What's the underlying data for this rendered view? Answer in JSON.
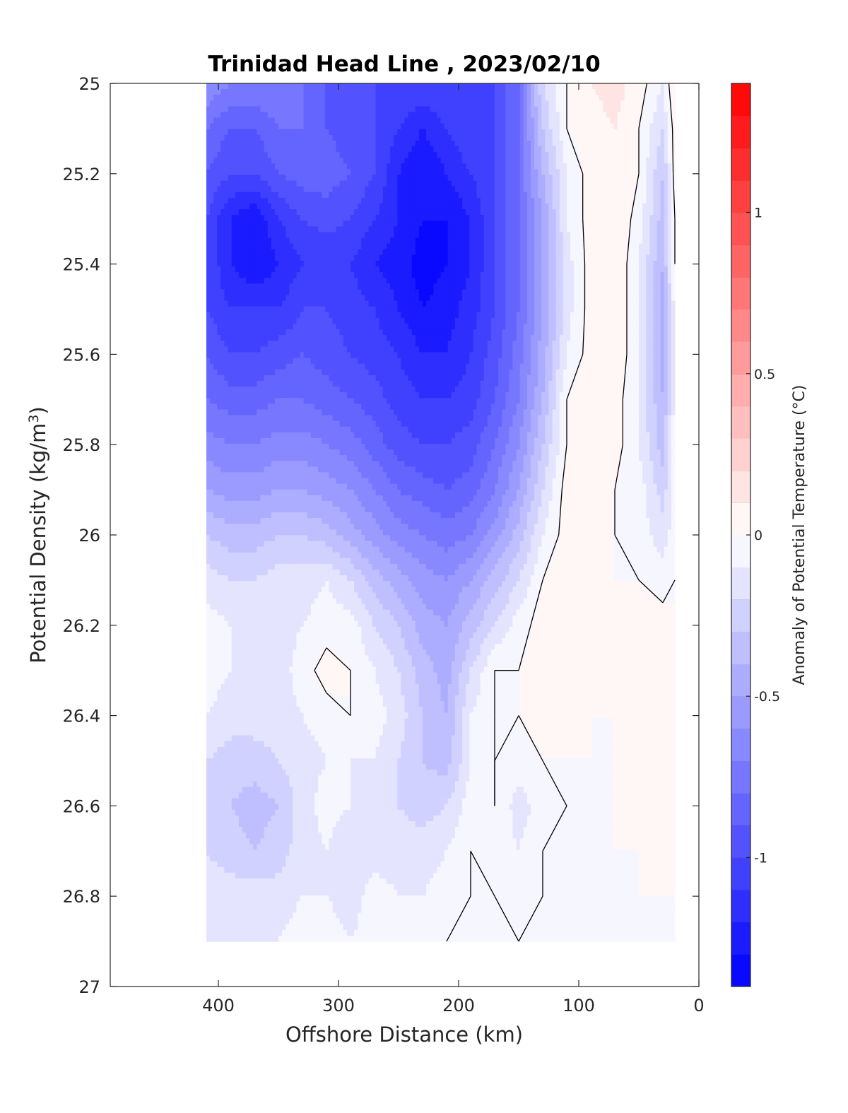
{
  "chart_data": {
    "type": "contour",
    "title": "Trinidad Head Line , 2023/02/10",
    "xlabel": "Offshore Distance (km)",
    "ylabel": "Potential Density (kg/m³)",
    "ylabel_base": "Potential Density (kg/m",
    "ylabel_sup": "3",
    "ylabel_tail": ")",
    "xlim": [
      490,
      0
    ],
    "ylim": [
      25,
      27
    ],
    "xticks": [
      400,
      300,
      200,
      100,
      0
    ],
    "yticks": [
      25,
      25.2,
      25.4,
      25.6,
      25.8,
      26,
      26.2,
      26.4,
      26.6,
      26.8,
      27
    ],
    "data_extent": {
      "x": [
        410,
        20
      ],
      "y": [
        25.0,
        26.9
      ]
    },
    "zero_contour_drawn": true,
    "colorbar": {
      "label": "Anomaly of Potential Temperature (°C)",
      "range": [
        -1.4,
        1.4
      ],
      "step": 0.1,
      "ticks": [
        1,
        0.5,
        0,
        -0.5,
        -1
      ],
      "tick_labels": [
        "1",
        "0.5",
        "0",
        "-0.5",
        "-1"
      ],
      "colormap": "blue-white-red",
      "negative_color": "#0000ff",
      "positive_color": "#ff0000"
    },
    "anomaly_grid": {
      "x": [
        410,
        390,
        370,
        350,
        330,
        310,
        290,
        270,
        250,
        230,
        210,
        190,
        170,
        150,
        130,
        110,
        90,
        70,
        50,
        30,
        20
      ],
      "y": [
        25.0,
        25.1,
        25.2,
        25.3,
        25.4,
        25.5,
        25.6,
        25.7,
        25.8,
        25.9,
        26.0,
        26.1,
        26.2,
        26.3,
        26.4,
        26.5,
        26.6,
        26.7,
        26.8,
        26.9
      ],
      "z": [
        [
          -0.6,
          -0.7,
          -0.7,
          -0.7,
          -0.8,
          -0.9,
          -1.0,
          -1.0,
          -1.0,
          -1.0,
          -1.0,
          -1.0,
          -1.0,
          -0.8,
          -0.2,
          0.0,
          0.1,
          0.15,
          0.05,
          -0.1,
          0.1
        ],
        [
          -0.8,
          -0.9,
          -0.9,
          -0.8,
          -0.8,
          -0.9,
          -0.95,
          -1.0,
          -1.1,
          -1.2,
          -1.1,
          -1.0,
          -1.0,
          -0.8,
          -0.3,
          0.0,
          0.05,
          0.1,
          0.0,
          -0.2,
          0.05
        ],
        [
          -0.9,
          -1.0,
          -1.0,
          -0.9,
          -0.85,
          -0.85,
          -0.9,
          -1.0,
          -1.2,
          -1.3,
          -1.2,
          -1.1,
          -1.0,
          -0.8,
          -0.4,
          -0.1,
          0.05,
          0.1,
          0.0,
          -0.3,
          0.05
        ],
        [
          -1.0,
          -1.2,
          -1.3,
          -1.1,
          -1.0,
          -0.95,
          -1.0,
          -1.1,
          -1.2,
          -1.3,
          -1.3,
          -1.2,
          -1.0,
          -0.8,
          -0.5,
          -0.1,
          0.05,
          0.1,
          -0.05,
          -0.35,
          0.0
        ],
        [
          -1.0,
          -1.2,
          -1.3,
          -1.2,
          -1.1,
          -1.1,
          -1.1,
          -1.2,
          -1.25,
          -1.35,
          -1.3,
          -1.2,
          -1.0,
          -0.8,
          -0.5,
          -0.15,
          0.05,
          0.1,
          -0.1,
          -0.4,
          0.0
        ],
        [
          -1.0,
          -1.1,
          -1.1,
          -1.1,
          -1.0,
          -1.0,
          -1.05,
          -1.1,
          -1.2,
          -1.3,
          -1.25,
          -1.15,
          -1.0,
          -0.8,
          -0.5,
          -0.15,
          0.05,
          0.1,
          -0.1,
          -0.45,
          -0.05
        ],
        [
          -0.9,
          -1.0,
          -1.0,
          -0.95,
          -0.9,
          -0.95,
          -1.0,
          -1.05,
          -1.1,
          -1.2,
          -1.2,
          -1.1,
          -0.95,
          -0.75,
          -0.45,
          -0.1,
          0.05,
          0.1,
          -0.1,
          -0.45,
          -0.05
        ],
        [
          -0.8,
          -0.85,
          -0.85,
          -0.8,
          -0.8,
          -0.85,
          -0.9,
          -0.95,
          -1.05,
          -1.1,
          -1.1,
          -1.05,
          -0.9,
          -0.7,
          -0.4,
          0.0,
          0.1,
          0.05,
          -0.1,
          -0.4,
          -0.05
        ],
        [
          -0.65,
          -0.7,
          -0.7,
          -0.65,
          -0.65,
          -0.7,
          -0.75,
          -0.85,
          -0.95,
          -1.0,
          -1.0,
          -0.95,
          -0.8,
          -0.6,
          -0.3,
          0.0,
          0.1,
          0.05,
          -0.1,
          -0.35,
          -0.05
        ],
        [
          -0.5,
          -0.55,
          -0.55,
          -0.5,
          -0.5,
          -0.55,
          -0.6,
          -0.7,
          -0.8,
          -0.85,
          -0.9,
          -0.85,
          -0.7,
          -0.5,
          -0.2,
          0.05,
          0.1,
          0.0,
          -0.05,
          -0.25,
          -0.05
        ],
        [
          -0.3,
          -0.35,
          -0.35,
          -0.3,
          -0.3,
          -0.35,
          -0.45,
          -0.55,
          -0.65,
          -0.7,
          -0.75,
          -0.7,
          -0.55,
          -0.35,
          -0.1,
          0.05,
          0.1,
          0.0,
          -0.05,
          -0.15,
          -0.05
        ],
        [
          -0.15,
          -0.2,
          -0.2,
          -0.15,
          -0.15,
          -0.1,
          -0.2,
          -0.35,
          -0.45,
          -0.55,
          -0.6,
          -0.5,
          -0.35,
          -0.2,
          0.0,
          0.1,
          0.05,
          0.0,
          0.0,
          -0.05,
          0.0
        ],
        [
          -0.05,
          -0.1,
          -0.1,
          -0.15,
          -0.1,
          -0.05,
          -0.05,
          -0.2,
          -0.3,
          -0.45,
          -0.5,
          -0.35,
          -0.2,
          -0.05,
          0.05,
          0.1,
          0.05,
          0.0,
          0.1,
          0.05,
          0.0
        ],
        [
          -0.05,
          -0.1,
          -0.1,
          -0.15,
          -0.05,
          0.05,
          0.0,
          -0.1,
          -0.2,
          -0.35,
          -0.45,
          -0.2,
          0.0,
          0.0,
          0.05,
          0.1,
          0.05,
          0.0,
          0.1,
          0.05,
          0.0
        ],
        [
          -0.1,
          -0.15,
          -0.15,
          -0.15,
          -0.1,
          -0.05,
          0.0,
          -0.05,
          -0.15,
          -0.3,
          -0.4,
          -0.1,
          0.0,
          0.0,
          0.05,
          0.05,
          0.0,
          0.0,
          0.05,
          0.05,
          0.0
        ],
        [
          -0.2,
          -0.25,
          -0.25,
          -0.2,
          -0.15,
          -0.1,
          -0.1,
          -0.1,
          -0.2,
          -0.3,
          -0.35,
          -0.1,
          0.0,
          -0.05,
          0.0,
          0.0,
          0.0,
          0.0,
          0.05,
          0.05,
          0.0
        ],
        [
          -0.25,
          -0.3,
          -0.35,
          -0.3,
          -0.15,
          -0.05,
          -0.1,
          -0.15,
          -0.2,
          -0.25,
          -0.2,
          -0.05,
          0.0,
          -0.15,
          -0.05,
          0.0,
          0.0,
          0.0,
          0.05,
          0.05,
          0.0
        ],
        [
          -0.2,
          -0.25,
          -0.3,
          -0.25,
          -0.15,
          -0.1,
          -0.2,
          -0.15,
          -0.15,
          -0.15,
          -0.1,
          0.0,
          -0.05,
          -0.1,
          0.0,
          0.0,
          0.0,
          0.0,
          0.0,
          0.05,
          0.0
        ],
        [
          -0.15,
          -0.15,
          -0.15,
          -0.15,
          -0.1,
          -0.1,
          -0.15,
          -0.05,
          -0.1,
          -0.1,
          -0.05,
          0.0,
          0.0,
          -0.05,
          0.0,
          0.0,
          0.0,
          0.0,
          0.0,
          0.0,
          0.0
        ],
        [
          -0.1,
          -0.1,
          -0.1,
          -0.1,
          -0.05,
          -0.05,
          -0.1,
          -0.05,
          -0.05,
          -0.05,
          0.0,
          0.0,
          0.0,
          0.0,
          0.0,
          0.0,
          0.0,
          0.0,
          0.0,
          0.0,
          0.0
        ]
      ]
    }
  }
}
